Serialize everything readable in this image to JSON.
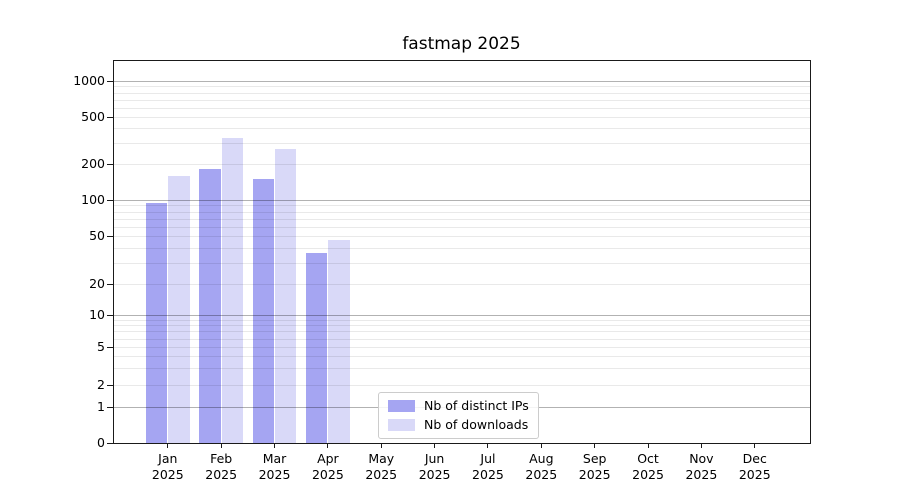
{
  "figure": {
    "background": "#ffffff",
    "text_color": "#000000"
  },
  "chart_data": {
    "type": "bar",
    "title": "fastmap 2025",
    "x_year": "2025",
    "categories": [
      "Jan",
      "Feb",
      "Mar",
      "Apr",
      "May",
      "Jun",
      "Jul",
      "Aug",
      "Sep",
      "Oct",
      "Nov",
      "Dec"
    ],
    "series": [
      {
        "name": "Nb of distinct IPs",
        "color": "#a5a5f2",
        "values": [
          95,
          180,
          150,
          36,
          null,
          null,
          null,
          null,
          null,
          null,
          null,
          null
        ]
      },
      {
        "name": "Nb of downloads",
        "color": "#d9d9f8",
        "values": [
          160,
          330,
          270,
          46,
          null,
          null,
          null,
          null,
          null,
          null,
          null,
          null
        ]
      }
    ],
    "y_axis": {
      "scale": "symlog",
      "ticks": [
        0,
        1,
        2,
        5,
        10,
        20,
        50,
        100,
        200,
        500,
        1000
      ],
      "major_gridlines": [
        1,
        10,
        100,
        1000
      ],
      "minor_gridlines": [
        2,
        3,
        4,
        5,
        6,
        7,
        8,
        9,
        20,
        30,
        40,
        50,
        60,
        70,
        80,
        90,
        200,
        300,
        400,
        500,
        600,
        700,
        800,
        900
      ],
      "range": [
        0,
        1500
      ]
    },
    "grid": {
      "major": true,
      "minor": true
    },
    "legend": {
      "position": "lower-center"
    }
  }
}
